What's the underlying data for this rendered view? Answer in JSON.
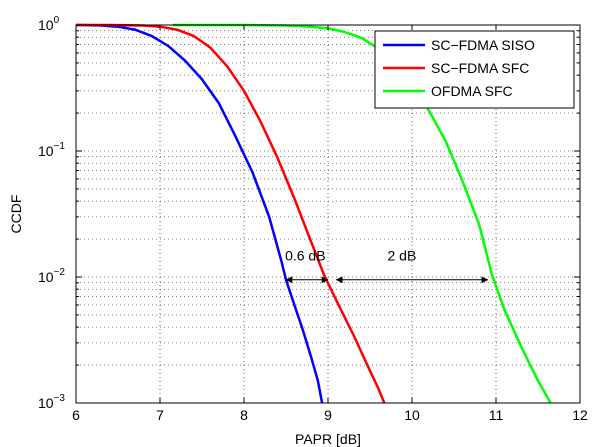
{
  "chart_data": {
    "type": "line",
    "xlabel": "PAPR [dB]",
    "ylabel": "CCDF",
    "x_scale": "linear",
    "y_scale": "log",
    "xlim": [
      6,
      12
    ],
    "ylim": [
      0.001,
      1
    ],
    "x_ticks": [
      "6",
      "7",
      "8",
      "9",
      "10",
      "11",
      "12"
    ],
    "y_ticks": [
      {
        "base": "10",
        "exp": "0"
      },
      {
        "base": "10",
        "exp": "−1"
      },
      {
        "base": "10",
        "exp": "−2"
      },
      {
        "base": "10",
        "exp": "−3"
      }
    ],
    "grid": true,
    "legend_position": "top-right",
    "series": [
      {
        "name": "SC−FDMA SISO",
        "color": "#0000ff",
        "points": [
          [
            6.0,
            1.0
          ],
          [
            6.3,
            0.99
          ],
          [
            6.5,
            0.97
          ],
          [
            6.7,
            0.92
          ],
          [
            6.9,
            0.82
          ],
          [
            7.1,
            0.68
          ],
          [
            7.3,
            0.52
          ],
          [
            7.5,
            0.37
          ],
          [
            7.7,
            0.24
          ],
          [
            7.9,
            0.13
          ],
          [
            8.1,
            0.068
          ],
          [
            8.3,
            0.03
          ],
          [
            8.45,
            0.013
          ],
          [
            8.5,
            0.0095
          ],
          [
            8.6,
            0.006
          ],
          [
            8.7,
            0.0038
          ],
          [
            8.8,
            0.0023
          ],
          [
            8.88,
            0.0015
          ],
          [
            8.93,
            0.001
          ]
        ]
      },
      {
        "name": "SC−FDMA SFC",
        "color": "#ff0000",
        "points": [
          [
            6.0,
            1.0
          ],
          [
            6.4,
            1.0
          ],
          [
            6.8,
            0.99
          ],
          [
            7.0,
            0.97
          ],
          [
            7.2,
            0.92
          ],
          [
            7.4,
            0.82
          ],
          [
            7.6,
            0.66
          ],
          [
            7.8,
            0.47
          ],
          [
            8.0,
            0.3
          ],
          [
            8.2,
            0.17
          ],
          [
            8.4,
            0.088
          ],
          [
            8.6,
            0.042
          ],
          [
            8.8,
            0.019
          ],
          [
            8.95,
            0.0105
          ],
          [
            9.1,
            0.0065
          ],
          [
            9.3,
            0.0035
          ],
          [
            9.5,
            0.0018
          ],
          [
            9.6,
            0.0013
          ],
          [
            9.67,
            0.001
          ]
        ]
      },
      {
        "name": "OFDMA SFC",
        "color": "#00ff00",
        "points": [
          [
            7.15,
            1.0
          ],
          [
            8.0,
            1.0
          ],
          [
            8.5,
            0.99
          ],
          [
            8.8,
            0.97
          ],
          [
            9.0,
            0.94
          ],
          [
            9.2,
            0.88
          ],
          [
            9.4,
            0.79
          ],
          [
            9.6,
            0.65
          ],
          [
            9.8,
            0.5
          ],
          [
            10.0,
            0.34
          ],
          [
            10.2,
            0.21
          ],
          [
            10.4,
            0.12
          ],
          [
            10.6,
            0.058
          ],
          [
            10.8,
            0.026
          ],
          [
            10.95,
            0.0105
          ],
          [
            11.1,
            0.0055
          ],
          [
            11.3,
            0.0028
          ],
          [
            11.5,
            0.0015
          ],
          [
            11.65,
            0.001
          ]
        ]
      }
    ],
    "annotations": [
      {
        "text": "0.6 dB",
        "x_from": 8.5,
        "x_to": 9.0,
        "y": 0.0095,
        "label_x": 8.73,
        "label_y": 0.0135
      },
      {
        "text": "2 dB",
        "x_from": 9.1,
        "x_to": 10.9,
        "y": 0.0095,
        "label_x": 9.88,
        "label_y": 0.0135
      }
    ]
  }
}
